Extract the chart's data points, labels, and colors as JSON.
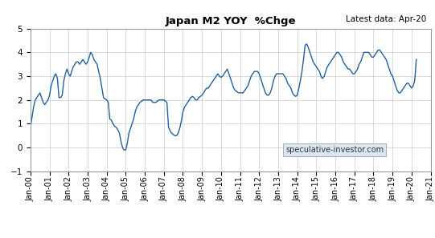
{
  "title": "Japan M2 YOY  %Chge",
  "latest_data_label": "Latest data: Apr-20",
  "watermark": "speculative-investor.com",
  "line_color": "#2060a0",
  "background_color": "#ffffff",
  "plot_bg_color": "#ffffff",
  "grid_color": "#cccccc",
  "ylim": [
    -1,
    5
  ],
  "yticks": [
    -1,
    0,
    1,
    2,
    3,
    4,
    5
  ],
  "dates": [
    "2000-01-01",
    "2000-02-01",
    "2000-03-01",
    "2000-04-01",
    "2000-05-01",
    "2000-06-01",
    "2000-07-01",
    "2000-08-01",
    "2000-09-01",
    "2000-10-01",
    "2000-11-01",
    "2000-12-01",
    "2001-01-01",
    "2001-02-01",
    "2001-03-01",
    "2001-04-01",
    "2001-05-01",
    "2001-06-01",
    "2001-07-01",
    "2001-08-01",
    "2001-09-01",
    "2001-10-01",
    "2001-11-01",
    "2001-12-01",
    "2002-01-01",
    "2002-02-01",
    "2002-03-01",
    "2002-04-01",
    "2002-05-01",
    "2002-06-01",
    "2002-07-01",
    "2002-08-01",
    "2002-09-01",
    "2002-10-01",
    "2002-11-01",
    "2002-12-01",
    "2003-01-01",
    "2003-02-01",
    "2003-03-01",
    "2003-04-01",
    "2003-05-01",
    "2003-06-01",
    "2003-07-01",
    "2003-08-01",
    "2003-09-01",
    "2003-10-01",
    "2003-11-01",
    "2003-12-01",
    "2004-01-01",
    "2004-02-01",
    "2004-03-01",
    "2004-04-01",
    "2004-05-01",
    "2004-06-01",
    "2004-07-01",
    "2004-08-01",
    "2004-09-01",
    "2004-10-01",
    "2004-11-01",
    "2004-12-01",
    "2005-01-01",
    "2005-02-01",
    "2005-03-01",
    "2005-04-01",
    "2005-05-01",
    "2005-06-01",
    "2005-07-01",
    "2005-08-01",
    "2005-09-01",
    "2005-10-01",
    "2005-11-01",
    "2005-12-01",
    "2006-01-01",
    "2006-02-01",
    "2006-03-01",
    "2006-04-01",
    "2006-05-01",
    "2006-06-01",
    "2006-07-01",
    "2006-08-01",
    "2006-09-01",
    "2006-10-01",
    "2006-11-01",
    "2006-12-01",
    "2007-01-01",
    "2007-02-01",
    "2007-03-01",
    "2007-04-01",
    "2007-05-01",
    "2007-06-01",
    "2007-07-01",
    "2007-08-01",
    "2007-09-01",
    "2007-10-01",
    "2007-11-01",
    "2007-12-01",
    "2008-01-01",
    "2008-02-01",
    "2008-03-01",
    "2008-04-01",
    "2008-05-01",
    "2008-06-01",
    "2008-07-01",
    "2008-08-01",
    "2008-09-01",
    "2008-10-01",
    "2008-11-01",
    "2008-12-01",
    "2009-01-01",
    "2009-02-01",
    "2009-03-01",
    "2009-04-01",
    "2009-05-01",
    "2009-06-01",
    "2009-07-01",
    "2009-08-01",
    "2009-09-01",
    "2009-10-01",
    "2009-11-01",
    "2009-12-01",
    "2010-01-01",
    "2010-02-01",
    "2010-03-01",
    "2010-04-01",
    "2010-05-01",
    "2010-06-01",
    "2010-07-01",
    "2010-08-01",
    "2010-09-01",
    "2010-10-01",
    "2010-11-01",
    "2010-12-01",
    "2011-01-01",
    "2011-02-01",
    "2011-03-01",
    "2011-04-01",
    "2011-05-01",
    "2011-06-01",
    "2011-07-01",
    "2011-08-01",
    "2011-09-01",
    "2011-10-01",
    "2011-11-01",
    "2011-12-01",
    "2012-01-01",
    "2012-02-01",
    "2012-03-01",
    "2012-04-01",
    "2012-05-01",
    "2012-06-01",
    "2012-07-01",
    "2012-08-01",
    "2012-09-01",
    "2012-10-01",
    "2012-11-01",
    "2012-12-01",
    "2013-01-01",
    "2013-02-01",
    "2013-03-01",
    "2013-04-01",
    "2013-05-01",
    "2013-06-01",
    "2013-07-01",
    "2013-08-01",
    "2013-09-01",
    "2013-10-01",
    "2013-11-01",
    "2013-12-01",
    "2014-01-01",
    "2014-02-01",
    "2014-03-01",
    "2014-04-01",
    "2014-05-01",
    "2014-06-01",
    "2014-07-01",
    "2014-08-01",
    "2014-09-01",
    "2014-10-01",
    "2014-11-01",
    "2014-12-01",
    "2015-01-01",
    "2015-02-01",
    "2015-03-01",
    "2015-04-01",
    "2015-05-01",
    "2015-06-01",
    "2015-07-01",
    "2015-08-01",
    "2015-09-01",
    "2015-10-01",
    "2015-11-01",
    "2015-12-01",
    "2016-01-01",
    "2016-02-01",
    "2016-03-01",
    "2016-04-01",
    "2016-05-01",
    "2016-06-01",
    "2016-07-01",
    "2016-08-01",
    "2016-09-01",
    "2016-10-01",
    "2016-11-01",
    "2016-12-01",
    "2017-01-01",
    "2017-02-01",
    "2017-03-01",
    "2017-04-01",
    "2017-05-01",
    "2017-06-01",
    "2017-07-01",
    "2017-08-01",
    "2017-09-01",
    "2017-10-01",
    "2017-11-01",
    "2017-12-01",
    "2018-01-01",
    "2018-02-01",
    "2018-03-01",
    "2018-04-01",
    "2018-05-01",
    "2018-06-01",
    "2018-07-01",
    "2018-08-01",
    "2018-09-01",
    "2018-10-01",
    "2018-11-01",
    "2018-12-01",
    "2019-01-01",
    "2019-02-01",
    "2019-03-01",
    "2019-04-01",
    "2019-05-01",
    "2019-06-01",
    "2019-07-01",
    "2019-08-01",
    "2019-09-01",
    "2019-10-01",
    "2019-11-01",
    "2019-12-01",
    "2020-01-01",
    "2020-02-01",
    "2020-03-01",
    "2020-04-01"
  ],
  "values": [
    0.85,
    1.3,
    1.7,
    2.0,
    2.1,
    2.2,
    2.3,
    2.1,
    1.9,
    1.8,
    1.9,
    2.0,
    2.2,
    2.6,
    2.8,
    3.0,
    3.1,
    2.9,
    2.1,
    2.1,
    2.2,
    2.8,
    3.1,
    3.3,
    3.1,
    3.0,
    3.2,
    3.4,
    3.5,
    3.6,
    3.6,
    3.5,
    3.6,
    3.7,
    3.6,
    3.5,
    3.6,
    3.8,
    4.0,
    3.9,
    3.7,
    3.6,
    3.5,
    3.2,
    2.9,
    2.5,
    2.1,
    2.05,
    2.0,
    1.9,
    1.2,
    1.15,
    1.0,
    0.9,
    0.85,
    0.75,
    0.6,
    0.25,
    0.0,
    -0.1,
    -0.1,
    0.2,
    0.6,
    0.8,
    1.0,
    1.2,
    1.5,
    1.7,
    1.8,
    1.9,
    1.95,
    2.0,
    2.0,
    2.0,
    2.0,
    2.0,
    2.0,
    1.9,
    1.9,
    1.9,
    1.95,
    2.0,
    2.0,
    2.0,
    2.0,
    1.95,
    1.9,
    0.85,
    0.7,
    0.6,
    0.55,
    0.5,
    0.5,
    0.6,
    0.8,
    1.1,
    1.5,
    1.7,
    1.8,
    1.9,
    2.0,
    2.1,
    2.15,
    2.1,
    2.0,
    2.0,
    2.1,
    2.15,
    2.2,
    2.3,
    2.4,
    2.5,
    2.5,
    2.6,
    2.7,
    2.8,
    2.9,
    3.0,
    3.1,
    3.0,
    2.95,
    3.0,
    3.1,
    3.2,
    3.3,
    3.1,
    2.9,
    2.7,
    2.5,
    2.4,
    2.35,
    2.3,
    2.3,
    2.3,
    2.3,
    2.4,
    2.5,
    2.6,
    2.8,
    3.0,
    3.1,
    3.2,
    3.2,
    3.2,
    3.1,
    2.9,
    2.7,
    2.5,
    2.3,
    2.2,
    2.2,
    2.3,
    2.5,
    2.8,
    3.0,
    3.1,
    3.1,
    3.1,
    3.1,
    3.1,
    3.0,
    2.9,
    2.7,
    2.6,
    2.5,
    2.3,
    2.2,
    2.15,
    2.2,
    2.5,
    2.8,
    3.2,
    3.7,
    4.3,
    4.35,
    4.2,
    4.0,
    3.8,
    3.6,
    3.5,
    3.4,
    3.3,
    3.2,
    3.0,
    2.9,
    3.0,
    3.2,
    3.4,
    3.5,
    3.6,
    3.7,
    3.8,
    3.9,
    4.0,
    4.0,
    3.9,
    3.8,
    3.6,
    3.5,
    3.4,
    3.3,
    3.3,
    3.2,
    3.1,
    3.1,
    3.2,
    3.3,
    3.5,
    3.6,
    3.8,
    4.0,
    4.0,
    4.0,
    4.0,
    3.9,
    3.8,
    3.8,
    3.9,
    4.0,
    4.1,
    4.1,
    4.0,
    3.9,
    3.8,
    3.7,
    3.5,
    3.3,
    3.1,
    3.0,
    2.8,
    2.6,
    2.4,
    2.3,
    2.3,
    2.4,
    2.5,
    2.6,
    2.7,
    2.7,
    2.6,
    2.5,
    2.6,
    2.8,
    3.7
  ]
}
